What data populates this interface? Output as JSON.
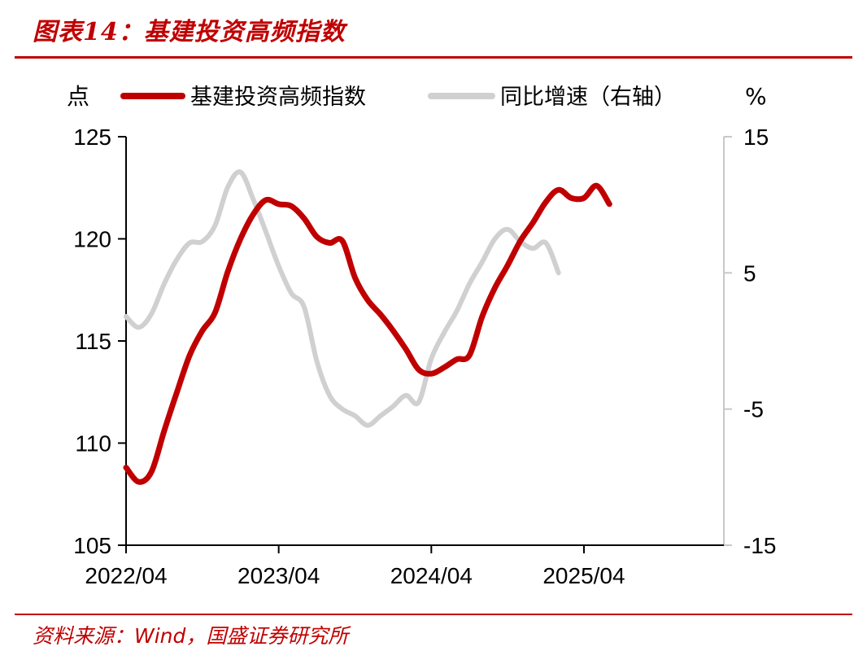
{
  "title": "图表14：基建投资高频指数",
  "source": "资料来源：Wind，国盛证券研究所",
  "colors": {
    "accent": "#c00000",
    "primary_series": "#c00000",
    "secondary_series": "#d0d0d0",
    "axis": "#000000",
    "right_axis": "#c8c8c8"
  },
  "chart_data": {
    "type": "line",
    "left_unit": "点",
    "right_unit": "%",
    "legend_position": "top",
    "grid": false,
    "y_left": {
      "min": 105,
      "max": 125,
      "ticks": [
        125,
        120,
        115,
        110,
        105
      ]
    },
    "y_right": {
      "min": -15,
      "max": 15,
      "ticks": [
        15,
        5,
        -5,
        -15
      ]
    },
    "x_ticks": [
      "2022/04",
      "2023/04",
      "2024/04",
      "2025/04"
    ],
    "x_range": [
      "2022/04",
      "2026/03"
    ],
    "series": [
      {
        "name": "基建投资高频指数",
        "axis": "left",
        "points": [
          [
            "2022/04",
            108.8
          ],
          [
            "2022/05",
            108.1
          ],
          [
            "2022/06",
            108.6
          ],
          [
            "2022/07",
            110.6
          ],
          [
            "2022/08",
            112.5
          ],
          [
            "2022/09",
            114.3
          ],
          [
            "2022/10",
            115.5
          ],
          [
            "2022/11",
            116.4
          ],
          [
            "2022/12",
            118.4
          ],
          [
            "2023/01",
            120.0
          ],
          [
            "2023/02",
            121.2
          ],
          [
            "2023/03",
            121.9
          ],
          [
            "2023/04",
            121.7
          ],
          [
            "2023/05",
            121.6
          ],
          [
            "2023/06",
            121.0
          ],
          [
            "2023/07",
            120.1
          ],
          [
            "2023/08",
            119.8
          ],
          [
            "2023/09",
            119.9
          ],
          [
            "2023/10",
            118.1
          ],
          [
            "2023/11",
            117.0
          ],
          [
            "2023/12",
            116.3
          ],
          [
            "2024/01",
            115.5
          ],
          [
            "2024/02",
            114.6
          ],
          [
            "2024/03",
            113.6
          ],
          [
            "2024/04",
            113.4
          ],
          [
            "2024/05",
            113.7
          ],
          [
            "2024/06",
            114.1
          ],
          [
            "2024/07",
            114.3
          ],
          [
            "2024/08",
            116.2
          ],
          [
            "2024/09",
            117.6
          ],
          [
            "2024/10",
            118.7
          ],
          [
            "2024/11",
            119.9
          ],
          [
            "2024/12",
            120.8
          ],
          [
            "2025/01",
            121.8
          ],
          [
            "2025/02",
            122.4
          ],
          [
            "2025/03",
            122.0
          ],
          [
            "2025/04",
            122.0
          ],
          [
            "2025/05",
            122.6
          ],
          [
            "2025/06",
            121.7
          ]
        ]
      },
      {
        "name": "同比增速（右轴）",
        "axis": "right",
        "points": [
          [
            "2022/04",
            1.8
          ],
          [
            "2022/05",
            1.0
          ],
          [
            "2022/06",
            2.0
          ],
          [
            "2022/07",
            4.2
          ],
          [
            "2022/08",
            6.0
          ],
          [
            "2022/09",
            7.2
          ],
          [
            "2022/10",
            7.3
          ],
          [
            "2022/11",
            8.5
          ],
          [
            "2022/12",
            11.3
          ],
          [
            "2023/01",
            12.4
          ],
          [
            "2023/02",
            10.4
          ],
          [
            "2023/03",
            8.0
          ],
          [
            "2023/04",
            5.5
          ],
          [
            "2023/05",
            3.5
          ],
          [
            "2023/06",
            2.5
          ],
          [
            "2023/07",
            -1.5
          ],
          [
            "2023/08",
            -4.0
          ],
          [
            "2023/09",
            -5.0
          ],
          [
            "2023/10",
            -5.5
          ],
          [
            "2023/11",
            -6.2
          ],
          [
            "2023/12",
            -5.5
          ],
          [
            "2024/01",
            -4.8
          ],
          [
            "2024/02",
            -4.0
          ],
          [
            "2024/03",
            -4.5
          ],
          [
            "2024/04",
            -1.3
          ],
          [
            "2024/05",
            0.6
          ],
          [
            "2024/06",
            2.2
          ],
          [
            "2024/07",
            4.2
          ],
          [
            "2024/08",
            5.8
          ],
          [
            "2024/09",
            7.5
          ],
          [
            "2024/10",
            8.2
          ],
          [
            "2024/11",
            7.3
          ],
          [
            "2024/12",
            6.8
          ],
          [
            "2025/01",
            7.2
          ],
          [
            "2025/02",
            5.0
          ]
        ]
      }
    ]
  }
}
